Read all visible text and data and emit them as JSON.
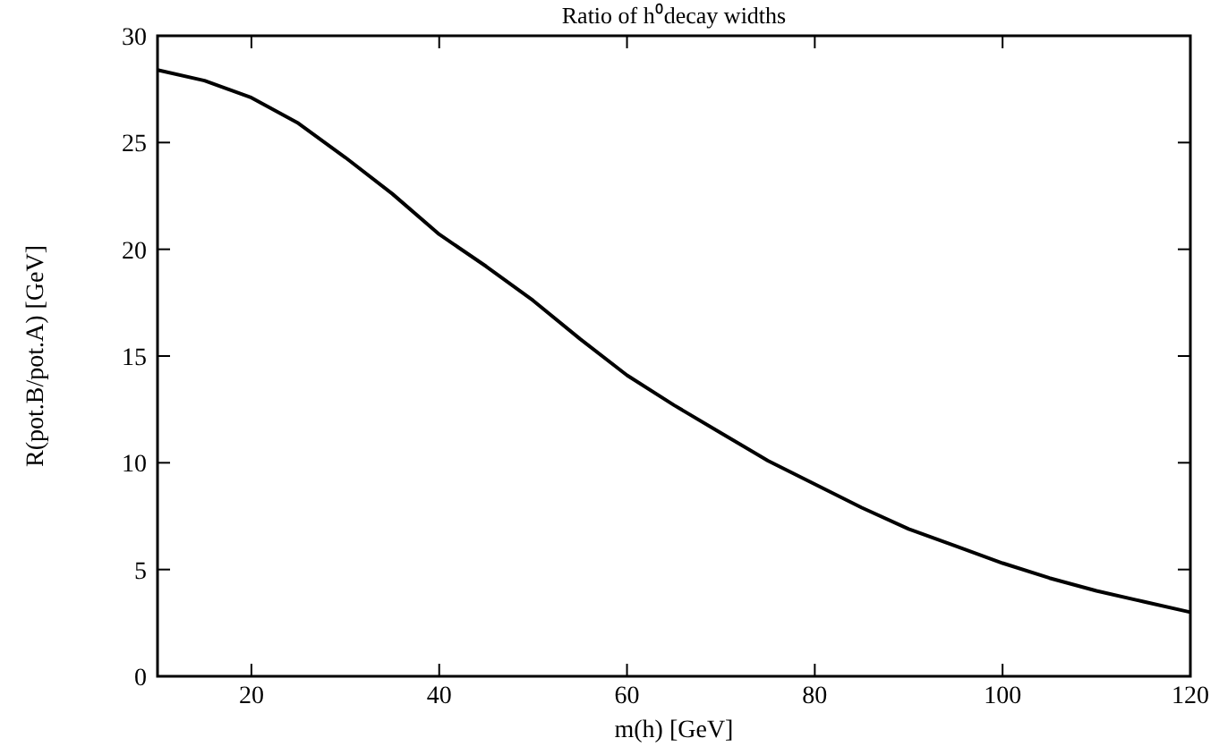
{
  "chart_data": {
    "type": "line",
    "title": "Ratio of h⁰decay widths",
    "xlabel": "m(h) [GeV]",
    "ylabel": "R(pot.B/pot.A) [GeV]",
    "x": [
      10,
      15,
      20,
      25,
      30,
      35,
      40,
      45,
      50,
      55,
      60,
      65,
      70,
      75,
      80,
      85,
      90,
      95,
      100,
      105,
      110,
      115,
      120
    ],
    "series": [
      {
        "color": "#000000",
        "values": [
          28.4,
          27.9,
          27.1,
          25.9,
          24.3,
          22.6,
          20.7,
          19.2,
          17.6,
          15.8,
          14.1,
          12.7,
          11.4,
          10.1,
          9.0,
          7.9,
          6.9,
          6.1,
          5.3,
          4.6,
          4.0,
          3.5,
          3.0
        ]
      }
    ],
    "xlim": [
      10,
      120
    ],
    "xticks": [
      20,
      40,
      60,
      80,
      100,
      120
    ],
    "ylim": [
      0,
      30
    ],
    "yticks": [
      0,
      5,
      10,
      15,
      20,
      25,
      30
    ]
  }
}
